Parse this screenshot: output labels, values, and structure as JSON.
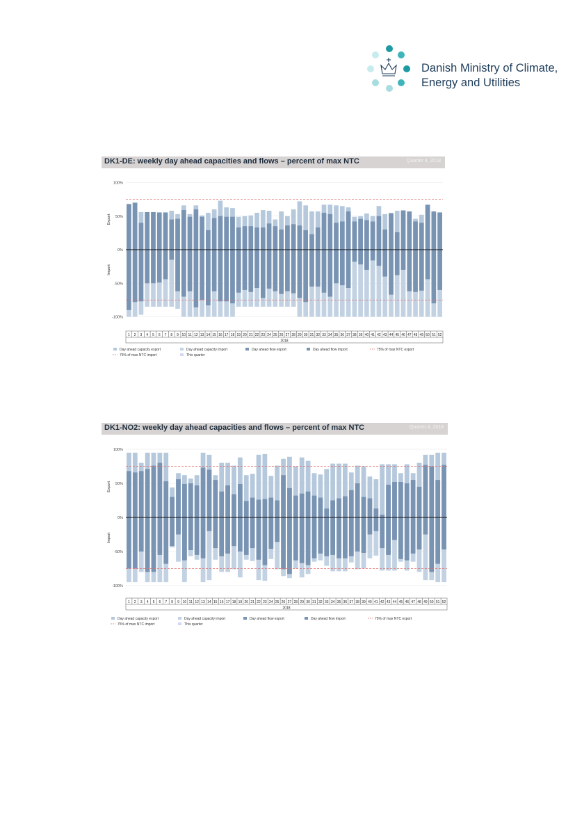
{
  "header": {
    "logo_line1": "Danish Ministry of Climate,",
    "logo_line2": "Energy and Utilities"
  },
  "colors": {
    "cap_export": "#b5c8dc",
    "cap_import": "#c2d2e3",
    "flow": "#7993b3",
    "threshold": "#e0716f",
    "quarter": "#d3d7f6",
    "title_bar": "#d7d3d3"
  },
  "legend": {
    "cap_export": "Day ahead capacity export",
    "cap_import": "Day ahead capacity import",
    "flow_export": "Day ahead flow export",
    "flow_import": "Day ahead flow import",
    "ntc_export": "75% of max NTC export",
    "ntc_import": "75% of max NTC import",
    "quarter": "This quarter"
  },
  "chart_data": [
    {
      "type": "bar",
      "title": "DK1-DE: weekly day ahead capacities and flows – percent of max NTC",
      "quarter_label": "Quarter 4, 2018",
      "xlabel": "2018",
      "ylabel_export": "Export",
      "ylabel_import": "Import",
      "ylim": [
        -105,
        105
      ],
      "yticks": [
        100,
        50,
        0,
        -50,
        -100
      ],
      "ytick_labels": [
        "100%",
        "50%",
        "0%",
        "-50%",
        "-100%"
      ],
      "threshold_export": 75,
      "threshold_import": -75,
      "quarter_weeks": [
        40,
        52
      ],
      "categories": [
        "1",
        "2",
        "3",
        "4",
        "5",
        "6",
        "7",
        "8",
        "9",
        "10",
        "11",
        "12",
        "13",
        "14",
        "15",
        "16",
        "17",
        "18",
        "19",
        "20",
        "21",
        "22",
        "23",
        "24",
        "25",
        "26",
        "27",
        "28",
        "29",
        "30",
        "31",
        "32",
        "33",
        "34",
        "35",
        "36",
        "37",
        "38",
        "39",
        "40",
        "41",
        "42",
        "43",
        "44",
        "45",
        "46",
        "47",
        "48",
        "49",
        "50",
        "51",
        "52"
      ],
      "series": [
        {
          "name": "Day ahead capacity export",
          "values": [
            68,
            70,
            56,
            56,
            56,
            56,
            56,
            58,
            53,
            66,
            53,
            66,
            51,
            55,
            60,
            73,
            63,
            62,
            49,
            50,
            51,
            55,
            59,
            58,
            45,
            57,
            50,
            60,
            72,
            66,
            57,
            57,
            67,
            67,
            66,
            65,
            63,
            49,
            50,
            54,
            50,
            65,
            53,
            55,
            58,
            59,
            54,
            46,
            52,
            59,
            55,
            56
          ]
        },
        {
          "name": "Day ahead capacity import",
          "values": [
            -100,
            -100,
            -97,
            -85,
            -85,
            -85,
            -85,
            -85,
            -88,
            -100,
            -100,
            -100,
            -100,
            -100,
            -100,
            -100,
            -100,
            -100,
            -85,
            -85,
            -85,
            -85,
            -85,
            -85,
            -85,
            -85,
            -85,
            -85,
            -100,
            -100,
            -100,
            -100,
            -100,
            -100,
            -100,
            -100,
            -100,
            -100,
            -100,
            -100,
            -100,
            -100,
            -100,
            -100,
            -100,
            -100,
            -100,
            -100,
            -100,
            -100,
            -100,
            -100
          ]
        },
        {
          "name": "Day ahead flow export",
          "values": [
            68,
            70,
            40,
            56,
            56,
            55,
            55,
            45,
            46,
            59,
            49,
            60,
            49,
            29,
            47,
            50,
            49,
            49,
            33,
            35,
            35,
            33,
            33,
            39,
            35,
            30,
            36,
            38,
            36,
            29,
            23,
            33,
            55,
            53,
            40,
            42,
            57,
            42,
            46,
            44,
            42,
            50,
            30,
            54,
            26,
            58,
            57,
            42,
            40,
            67,
            57,
            55
          ]
        },
        {
          "name": "Day ahead flow import",
          "values": [
            -90,
            -78,
            -77,
            -50,
            -50,
            -49,
            -44,
            -15,
            -62,
            -70,
            -62,
            -86,
            -75,
            -83,
            -62,
            -77,
            -77,
            -80,
            -64,
            -60,
            -63,
            -57,
            -72,
            -58,
            -62,
            -66,
            -62,
            -65,
            -72,
            -78,
            -55,
            -55,
            -64,
            -70,
            -50,
            -53,
            -57,
            -18,
            -22,
            -30,
            -16,
            -24,
            -40,
            -67,
            -38,
            -30,
            -62,
            -63,
            -61,
            -44,
            -80,
            -60
          ]
        }
      ]
    },
    {
      "type": "bar",
      "title": "DK1-NO2: weekly day ahead capacities and flows – percent of max NTC",
      "quarter_label": "Quarter 4, 2018",
      "xlabel": "2018",
      "ylabel_export": "Export",
      "ylabel_import": "Import",
      "ylim": [
        -105,
        105
      ],
      "yticks": [
        100,
        50,
        0,
        -50,
        -100
      ],
      "ytick_labels": [
        "100%",
        "50%",
        "0%",
        "-50%",
        "-100%"
      ],
      "threshold_export": 75,
      "threshold_import": -75,
      "quarter_weeks": [
        40,
        52
      ],
      "categories": [
        "1",
        "2",
        "3",
        "4",
        "5",
        "6",
        "7",
        "8",
        "9",
        "10",
        "11",
        "12",
        "13",
        "14",
        "15",
        "16",
        "17",
        "18",
        "19",
        "20",
        "21",
        "22",
        "23",
        "24",
        "25",
        "26",
        "27",
        "28",
        "29",
        "30",
        "31",
        "32",
        "33",
        "34",
        "35",
        "36",
        "37",
        "38",
        "39",
        "40",
        "41",
        "42",
        "43",
        "44",
        "45",
        "46",
        "47",
        "48",
        "49",
        "50",
        "51",
        "52"
      ],
      "series": [
        {
          "name": "Day ahead capacity export",
          "values": [
            95,
            95,
            80,
            95,
            95,
            95,
            95,
            44,
            65,
            62,
            57,
            62,
            95,
            92,
            62,
            80,
            80,
            76,
            88,
            62,
            64,
            92,
            93,
            61,
            76,
            86,
            89,
            75,
            88,
            83,
            65,
            63,
            71,
            79,
            79,
            79,
            66,
            76,
            75,
            60,
            56,
            78,
            78,
            78,
            65,
            78,
            65,
            80,
            92,
            92,
            95,
            95
          ]
        },
        {
          "name": "Day ahead capacity import",
          "values": [
            -95,
            -95,
            -80,
            -95,
            -95,
            -95,
            -95,
            -44,
            -65,
            -95,
            -57,
            -62,
            -95,
            -92,
            -62,
            -80,
            -80,
            -76,
            -88,
            -62,
            -64,
            -92,
            -93,
            -61,
            -76,
            -86,
            -89,
            -75,
            -88,
            -83,
            -65,
            -63,
            -71,
            -79,
            -79,
            -79,
            -66,
            -76,
            -75,
            -60,
            -56,
            -78,
            -78,
            -78,
            -65,
            -78,
            -65,
            -80,
            -92,
            -92,
            -95,
            -95
          ]
        },
        {
          "name": "Day ahead flow export",
          "values": [
            68,
            66,
            68,
            71,
            76,
            80,
            53,
            30,
            56,
            49,
            50,
            47,
            73,
            70,
            55,
            38,
            47,
            34,
            49,
            24,
            29,
            26,
            27,
            29,
            25,
            62,
            43,
            32,
            35,
            38,
            32,
            29,
            13,
            25,
            28,
            31,
            40,
            50,
            30,
            28,
            13,
            4,
            48,
            52,
            52,
            50,
            55,
            45,
            77,
            75,
            55,
            77
          ]
        },
        {
          "name": "Day ahead flow import",
          "values": [
            -75,
            -75,
            -50,
            -80,
            -80,
            -55,
            -68,
            -42,
            -25,
            -63,
            -48,
            -55,
            -60,
            -20,
            -45,
            -57,
            -53,
            -42,
            -50,
            -55,
            -45,
            -62,
            -70,
            -46,
            -36,
            -76,
            -83,
            -63,
            -67,
            -70,
            -60,
            -53,
            -57,
            -55,
            -60,
            -60,
            -57,
            -50,
            -52,
            -25,
            -20,
            -45,
            -55,
            -33,
            -61,
            -63,
            -53,
            -47,
            -25,
            -80,
            -68,
            -47
          ]
        }
      ]
    }
  ]
}
